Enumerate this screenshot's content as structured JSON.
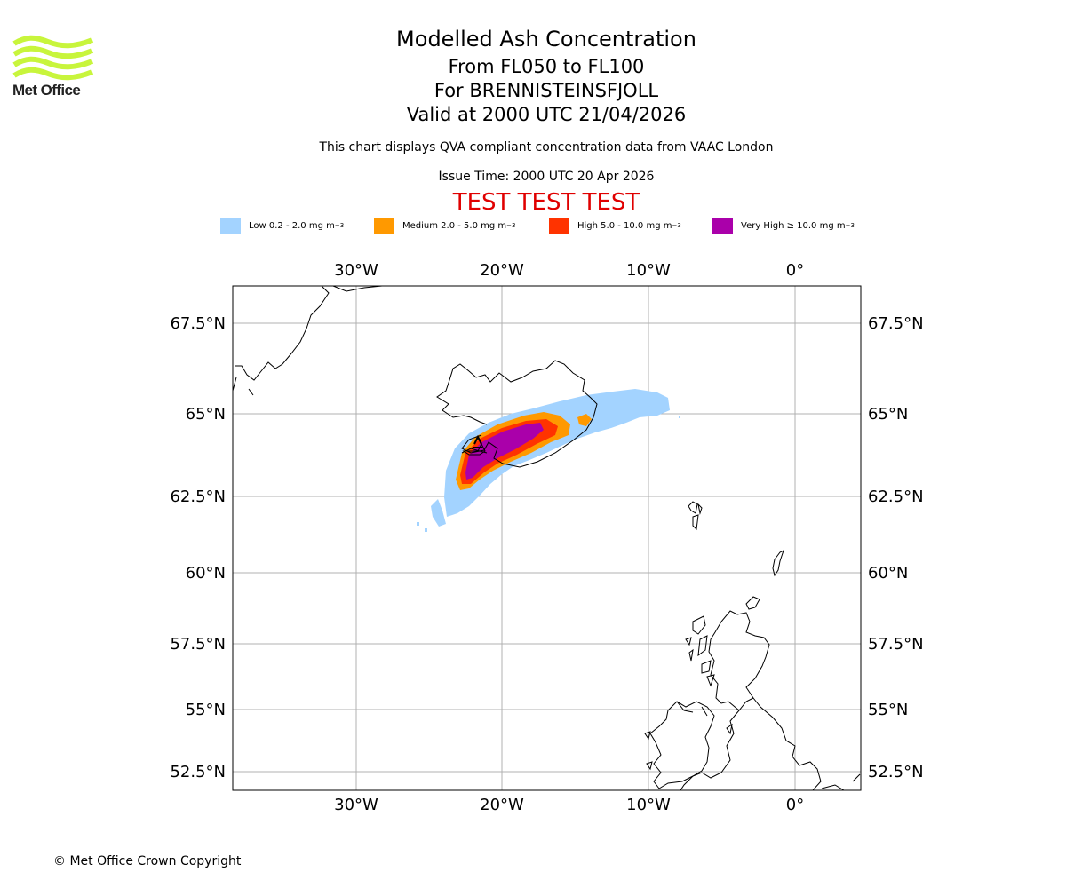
{
  "branding": {
    "logo_text": "Met Office",
    "logo_color": "#c8f53c"
  },
  "header": {
    "title": "Modelled Ash Concentration",
    "subtitle_levels": "From FL050 to FL100",
    "subtitle_volcano": "For BRENNISTEINSFJOLL",
    "subtitle_valid": "Valid at 2000 UTC 21/04/2026",
    "description": "This chart displays QVA compliant concentration data from VAAC London",
    "issue_time": "Issue Time: 2000 UTC 20 Apr 2026",
    "test_banner": "TEST TEST TEST"
  },
  "legend": [
    {
      "label": "Low 0.2 - 2.0 mg m",
      "color": "#a3d3ff"
    },
    {
      "label": "Medium 2.0 - 5.0 mg m",
      "color": "#ff9900"
    },
    {
      "label": "High 5.0 - 10.0 mg m",
      "color": "#ff3300"
    },
    {
      "label": "Very High  ≥  10.0 mg m",
      "color": "#aa00aa"
    }
  ],
  "legend_exponent": "−3",
  "map": {
    "lon_ticks": [
      "30°W",
      "20°W",
      "10°W",
      "0°"
    ],
    "lat_ticks": [
      "67.5°N",
      "65°N",
      "62.5°N",
      "60°N",
      "57.5°N",
      "55°N",
      "52.5°N"
    ]
  },
  "footer": {
    "copyright": "© Met Office Crown Copyright"
  }
}
